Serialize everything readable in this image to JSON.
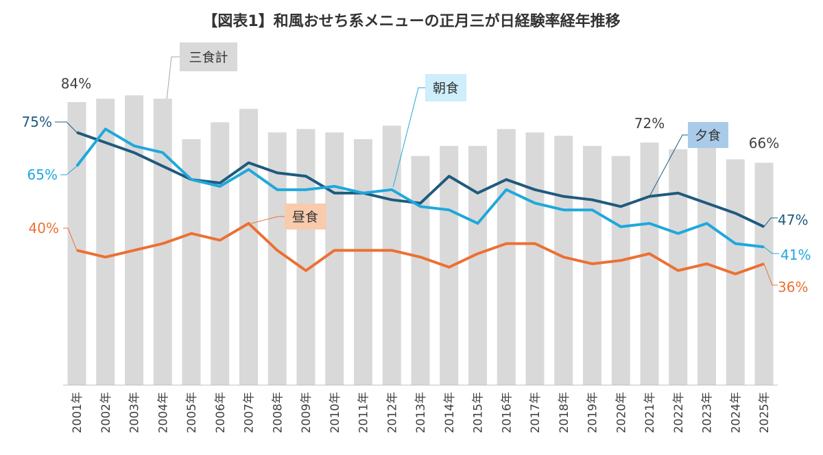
{
  "chart_data": {
    "type": "bar+line",
    "title": "【図表1】和風おせち系メニューの正月三が日経験率経年推移",
    "categories": [
      "2001年",
      "2002年",
      "2003年",
      "2004年",
      "2005年",
      "2006年",
      "2007年",
      "2008年",
      "2009年",
      "2010年",
      "2011年",
      "2012年",
      "2013年",
      "2014年",
      "2015年",
      "2016年",
      "2017年",
      "2018年",
      "2019年",
      "2020年",
      "2021年",
      "2022年",
      "2023年",
      "2024年",
      "2025年"
    ],
    "ylim": [
      0,
      100
    ],
    "grid": false,
    "series": [
      {
        "name": "三食計",
        "type": "bar",
        "color": "#d9d9d9",
        "values": [
          84,
          85,
          86,
          85,
          73,
          78,
          82,
          75,
          76,
          75,
          73,
          77,
          68,
          71,
          71,
          76,
          75,
          74,
          71,
          68,
          72,
          70,
          71,
          67,
          66
        ]
      },
      {
        "name": "夕食",
        "type": "line",
        "color": "#1f5a7e",
        "values": [
          75,
          72,
          69,
          65,
          61,
          60,
          66,
          63,
          62,
          57,
          57,
          55,
          54,
          62,
          57,
          61,
          58,
          56,
          55,
          53,
          56,
          57,
          54,
          51,
          47
        ]
      },
      {
        "name": "朝食",
        "type": "line",
        "color": "#1ea8dc",
        "values": [
          65,
          76,
          71,
          69,
          61,
          59,
          64,
          58,
          58,
          59,
          57,
          58,
          53,
          52,
          48,
          58,
          54,
          52,
          52,
          47,
          48,
          45,
          48,
          42,
          41
        ]
      },
      {
        "name": "昼食",
        "type": "line",
        "color": "#ec7032",
        "values": [
          40,
          38,
          40,
          42,
          45,
          43,
          48,
          40,
          34,
          40,
          40,
          40,
          38,
          35,
          39,
          42,
          42,
          38,
          36,
          37,
          39,
          34,
          36,
          33,
          36
        ]
      }
    ],
    "data_labels": {
      "bar_first": "84%",
      "bar_2021": "72%",
      "bar_last": "66%",
      "dinner_first": "75%",
      "dinner_last": "47%",
      "breakfast_first": "65%",
      "breakfast_last": "41%",
      "lunch_first": "40%",
      "lunch_last": "36%"
    },
    "callouts": {
      "total": "三食計",
      "breakfast": "朝食",
      "dinner": "夕食",
      "lunch": "昼食"
    }
  }
}
